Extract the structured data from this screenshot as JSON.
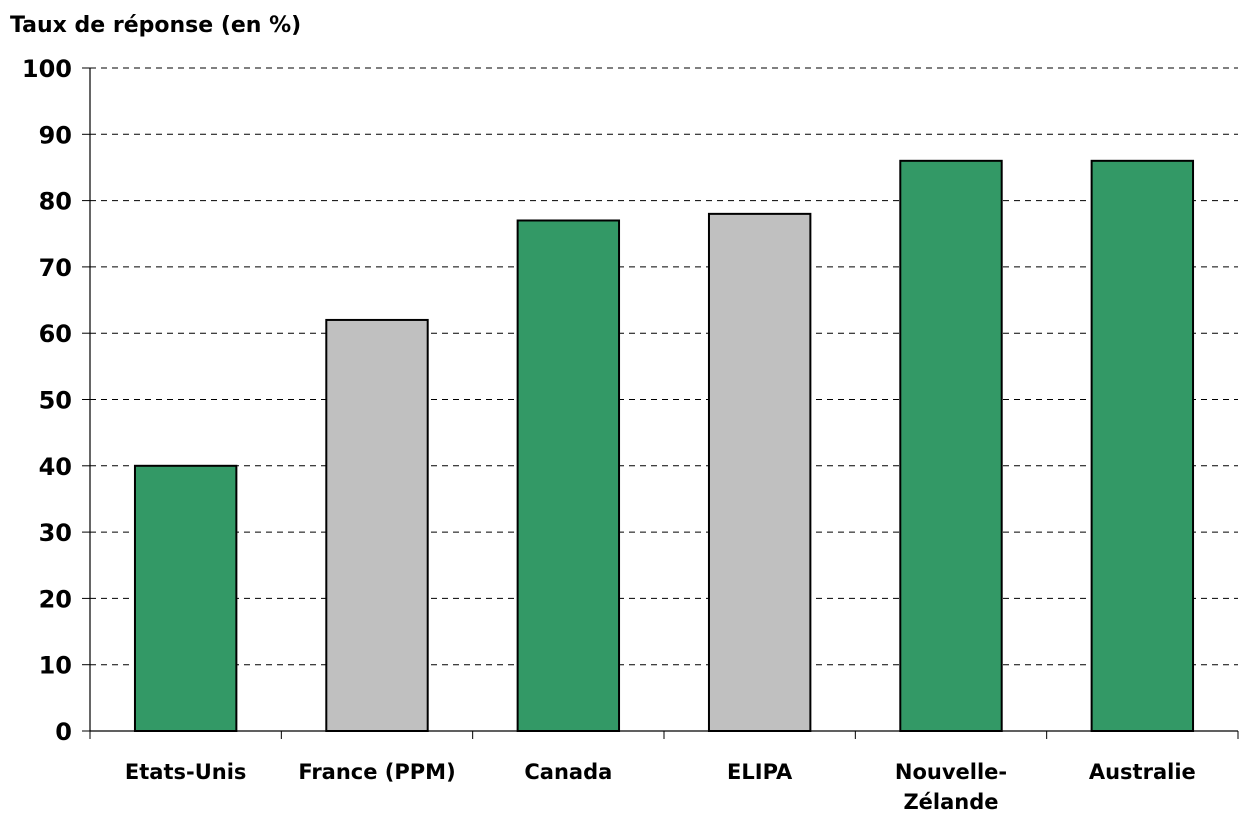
{
  "chart_data": {
    "type": "bar",
    "ylabel": "Taux de réponse (en %)",
    "ylim": [
      0,
      100
    ],
    "yticks": [
      "0",
      "10",
      "20",
      "30",
      "40",
      "50",
      "60",
      "70",
      "80",
      "90",
      "100"
    ],
    "grid": true,
    "categories": [
      {
        "label": "Etats-Unis",
        "lines": [
          "Etats-Unis"
        ]
      },
      {
        "label": "France (PPM)",
        "lines": [
          "France (PPM)"
        ]
      },
      {
        "label": "Canada",
        "lines": [
          "Canada"
        ]
      },
      {
        "label": "ELIPA",
        "lines": [
          "ELIPA"
        ]
      },
      {
        "label": "Nouvelle-Zélande",
        "lines": [
          "Nouvelle-",
          "Zélande"
        ]
      },
      {
        "label": "Australie",
        "lines": [
          "Australie"
        ]
      }
    ],
    "values": [
      40,
      62,
      77,
      78,
      86,
      86
    ],
    "bar_colors": [
      "#339966",
      "#c0c0c0",
      "#339966",
      "#c0c0c0",
      "#339966",
      "#339966"
    ]
  }
}
